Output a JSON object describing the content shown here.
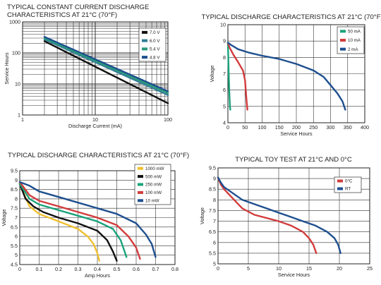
{
  "chart_data": [
    {
      "id": "c1",
      "type": "line",
      "title_lines": [
        "TYPICAL CONSTANT CURRENT DISCHARGE",
        "CHARACTERISTICS AT 21°C (70°F)"
      ],
      "xlabel": "Discharge Current (mA)",
      "ylabel": "Service Hours",
      "x_scale": "log",
      "y_scale": "log",
      "xlim": [
        1,
        100
      ],
      "ylim": [
        1,
        1000
      ],
      "x_ticks": [
        1,
        10,
        100
      ],
      "y_ticks": [
        1,
        10,
        100,
        1000
      ],
      "grid": true,
      "legend_position": "top-right",
      "series": [
        {
          "name": "7.0 V",
          "color": "#111111",
          "x": [
            2,
            100
          ],
          "y": [
            240,
            2.4
          ]
        },
        {
          "name": "6.0 V",
          "color": "#2f7e95",
          "x": [
            2,
            100
          ],
          "y": [
            275,
            4.4
          ]
        },
        {
          "name": "5.4 V",
          "color": "#2a9a78",
          "x": [
            2,
            100
          ],
          "y": [
            300,
            5.1
          ]
        },
        {
          "name": "4.8 V",
          "color": "#1e4f8f",
          "x": [
            2,
            100
          ],
          "y": [
            330,
            5.8
          ]
        }
      ]
    },
    {
      "id": "c2",
      "type": "line",
      "title": "TYPICAL DISCHARGE CHARACTERISTICS AT 21°C (70°F)",
      "xlabel": "Service Hours",
      "ylabel": "Voltage",
      "xlim": [
        0,
        400
      ],
      "ylim": [
        4,
        10
      ],
      "x_ticks": [
        0,
        50,
        100,
        150,
        200,
        250,
        300,
        350,
        400
      ],
      "y_ticks": [
        4,
        5,
        6,
        7,
        8,
        9,
        10
      ],
      "grid": true,
      "legend_position": "top-right",
      "series": [
        {
          "name": "50 mA",
          "color": "#1aa37a",
          "x": [
            0,
            1,
            2,
            4,
            6,
            7
          ],
          "y": [
            8.9,
            8.1,
            7.3,
            6.0,
            5.0,
            4.8
          ]
        },
        {
          "name": "10 mA",
          "color": "#d23c3c",
          "x": [
            0,
            5,
            15,
            30,
            44,
            50,
            54,
            57
          ],
          "y": [
            8.9,
            8.6,
            8.2,
            7.7,
            7.2,
            6.6,
            5.5,
            4.8
          ]
        },
        {
          "name": "2 mA",
          "color": "#1e4f8f",
          "x": [
            0,
            10,
            30,
            60,
            100,
            150,
            200,
            250,
            280,
            300,
            320,
            335,
            343
          ],
          "y": [
            8.9,
            8.75,
            8.5,
            8.3,
            8.1,
            7.9,
            7.6,
            7.2,
            6.8,
            6.3,
            5.8,
            5.3,
            4.8
          ]
        }
      ]
    },
    {
      "id": "c3",
      "type": "line",
      "title": "TYPICAL DISCHARGE CHARACTERISTICS AT 21°C (70°F)",
      "xlabel": "Amp Hours",
      "ylabel": "Voltage",
      "xlim": [
        0,
        0.8
      ],
      "ylim": [
        4.5,
        9.5
      ],
      "x_ticks": [
        0,
        0.1,
        0.2,
        0.3,
        0.4,
        0.5,
        0.6,
        0.7,
        0.8
      ],
      "y_ticks": [
        4.5,
        5,
        5.5,
        6,
        6.5,
        7,
        7.5,
        8,
        8.5,
        9,
        9.5
      ],
      "grid": true,
      "legend_position": "top-right",
      "series": [
        {
          "name": "1000 mW",
          "color": "#f0c030",
          "x": [
            0,
            0.02,
            0.05,
            0.1,
            0.2,
            0.3,
            0.35,
            0.38,
            0.4,
            0.41
          ],
          "y": [
            8.8,
            8.3,
            7.6,
            7.2,
            6.8,
            6.4,
            6.0,
            5.6,
            5.1,
            4.7
          ]
        },
        {
          "name": "500 mW",
          "color": "#111111",
          "x": [
            0,
            0.03,
            0.07,
            0.12,
            0.2,
            0.3,
            0.4,
            0.45,
            0.48,
            0.5
          ],
          "y": [
            8.8,
            8.0,
            7.6,
            7.3,
            7.0,
            6.7,
            6.3,
            5.8,
            5.2,
            4.7
          ]
        },
        {
          "name": "250 mW",
          "color": "#1aa37a",
          "x": [
            0,
            0.05,
            0.1,
            0.2,
            0.3,
            0.4,
            0.48,
            0.52,
            0.55
          ],
          "y": [
            8.8,
            8.0,
            7.7,
            7.4,
            7.1,
            6.8,
            6.4,
            5.8,
            4.9
          ]
        },
        {
          "name": "100 mW",
          "color": "#d23c3c",
          "x": [
            0,
            0.05,
            0.1,
            0.2,
            0.3,
            0.4,
            0.5,
            0.56,
            0.6,
            0.62
          ],
          "y": [
            8.9,
            8.2,
            7.9,
            7.6,
            7.3,
            7.0,
            6.6,
            6.0,
            5.4,
            4.8
          ]
        },
        {
          "name": "10 mW",
          "color": "#1e4f8f",
          "x": [
            0,
            0.05,
            0.1,
            0.2,
            0.3,
            0.4,
            0.5,
            0.6,
            0.65,
            0.68,
            0.7
          ],
          "y": [
            8.9,
            8.7,
            8.4,
            8.1,
            7.8,
            7.5,
            7.2,
            6.7,
            6.1,
            5.6,
            4.9
          ]
        }
      ]
    },
    {
      "id": "c4",
      "type": "line",
      "title": "TYPICAL TOY TEST AT 21°C AND 0°C",
      "xlabel": "Service Hours",
      "ylabel": "Voltage",
      "xlim": [
        0,
        25
      ],
      "ylim": [
        5,
        9.5
      ],
      "x_ticks": [
        0,
        5,
        10,
        15,
        20,
        25
      ],
      "y_ticks": [
        5,
        5.5,
        6,
        6.5,
        7,
        7.5,
        8,
        8.5,
        9,
        9.5
      ],
      "grid": true,
      "legend_position": "top-right",
      "series": [
        {
          "name": "0°C",
          "color": "#d23c3c",
          "x": [
            0,
            0.5,
            1,
            2,
            3,
            4,
            6,
            8,
            10,
            12,
            14,
            15,
            15.7,
            16.2
          ],
          "y": [
            9.05,
            8.7,
            8.5,
            8.2,
            7.9,
            7.6,
            7.3,
            7.15,
            7.0,
            6.8,
            6.5,
            6.2,
            5.9,
            5.5
          ]
        },
        {
          "name": "RT",
          "color": "#1e4f8f",
          "x": [
            0,
            0.5,
            1,
            2,
            4,
            6,
            8,
            10,
            12,
            14,
            16,
            18,
            19.2,
            19.8,
            20.2
          ],
          "y": [
            9.05,
            8.8,
            8.6,
            8.4,
            8.0,
            7.8,
            7.6,
            7.4,
            7.2,
            7.0,
            6.8,
            6.5,
            6.2,
            5.9,
            5.5
          ]
        }
      ]
    }
  ]
}
